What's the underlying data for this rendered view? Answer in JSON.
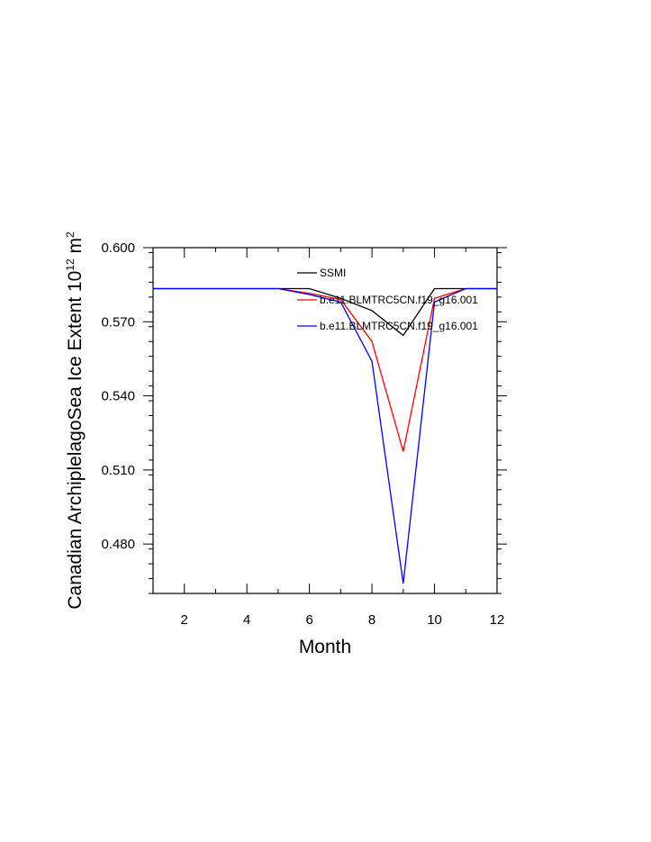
{
  "chart_data": {
    "type": "line",
    "title": "",
    "xlabel": "Month",
    "ylabel_main": "Canadian ArchiplelagoSea Ice Extent 10",
    "ylabel_exp": "12",
    "ylabel_unit": " m",
    "ylabel_unit_exp": "2",
    "xlim": [
      1,
      12
    ],
    "ylim": [
      0.46,
      0.6
    ],
    "xticks": [
      2,
      4,
      6,
      8,
      10,
      12
    ],
    "xtick_labels": [
      "2",
      "4",
      "6",
      "8",
      "10",
      "12"
    ],
    "yticks": [
      0.48,
      0.51,
      0.54,
      0.57,
      0.6
    ],
    "ytick_labels": [
      "0.480",
      "0.510",
      "0.540",
      "0.570",
      "0.600"
    ],
    "legend_position": "top-right",
    "x": [
      1,
      2,
      3,
      4,
      5,
      6,
      7,
      8,
      9,
      10,
      11,
      12
    ],
    "series": [
      {
        "name": "SSMI",
        "color": "#000000",
        "values": [
          0.5834,
          0.5834,
          0.5834,
          0.5834,
          0.5834,
          0.5834,
          0.5795,
          0.5745,
          0.5645,
          0.5834,
          0.5834,
          0.5834
        ]
      },
      {
        "name": "b.e11.BLMTRC5CN.f19_g16.001",
        "color": "#ff0000",
        "values": [
          0.5834,
          0.5834,
          0.5834,
          0.5834,
          0.5834,
          0.5815,
          0.579,
          0.562,
          0.5175,
          0.5795,
          0.5834,
          0.5834
        ]
      },
      {
        "name": "b.e11.BLMTRC5CN.f19_g16.001",
        "color": "#0000ff",
        "values": [
          0.5834,
          0.5834,
          0.5834,
          0.5834,
          0.5834,
          0.581,
          0.578,
          0.554,
          0.464,
          0.578,
          0.5834,
          0.5834
        ]
      }
    ]
  }
}
